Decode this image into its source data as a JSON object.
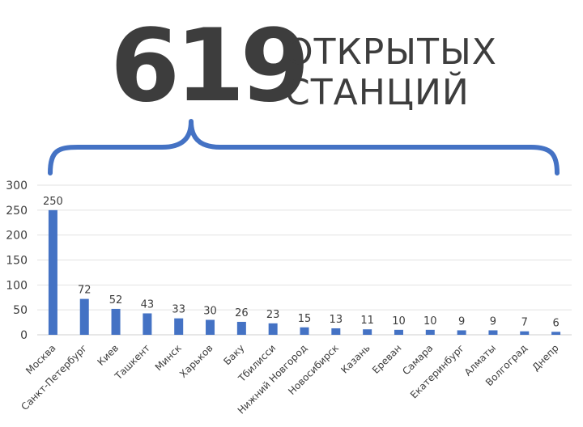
{
  "header": {
    "number": "619",
    "caption_line1": "ОТКРЫТЫХ",
    "caption_line2": "СТАНЦИЙ"
  },
  "colors": {
    "bar": "#4472C4",
    "brace": "#4472C4",
    "text": "#3d3d3d",
    "grid": "#e2e2e2"
  },
  "chart_data": {
    "type": "bar",
    "title": "",
    "xlabel": "",
    "ylabel": "",
    "ylim": [
      0,
      300
    ],
    "yticks": [
      0,
      50,
      100,
      150,
      200,
      250,
      300
    ],
    "grid": true,
    "categories": [
      "Москва",
      "Санкт-Петербург",
      "Киев",
      "Ташкент",
      "Минск",
      "Харьков",
      "Баку",
      "Тбилисси",
      "Нижний Новгород",
      "Новосибирск",
      "Казань",
      "Ереван",
      "Самара",
      "Екатеринбург",
      "Алматы",
      "Волгоград",
      "Днепр"
    ],
    "values": [
      250,
      72,
      52,
      43,
      33,
      30,
      26,
      23,
      15,
      13,
      11,
      10,
      10,
      9,
      9,
      7,
      6
    ]
  }
}
